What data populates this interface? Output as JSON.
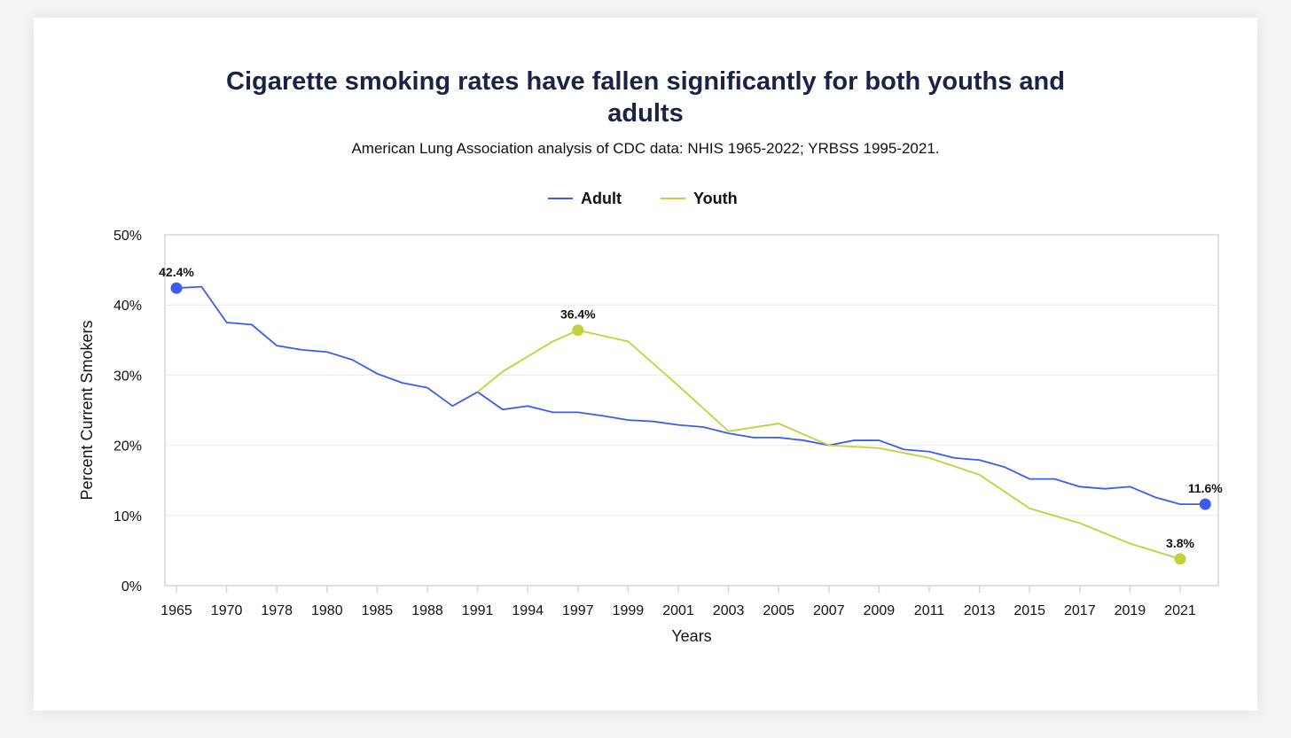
{
  "chart_data": {
    "type": "line",
    "title_line1": "Cigarette smoking rates have fallen significantly for both youths and",
    "title_line2": "adults",
    "subtitle": "American Lung Association analysis of CDC data: NHIS 1965-2022; YRBSS 1995-2021.",
    "xlabel": "Years",
    "ylabel": "Percent Current Smokers",
    "ylim": [
      0,
      50
    ],
    "yticks": [
      "0%",
      "10%",
      "20%",
      "30%",
      "40%",
      "50%"
    ],
    "legend_position": "top-center",
    "categories": [
      "1965",
      "1966",
      "1970",
      "1974",
      "1978",
      "1979",
      "1980",
      "1983",
      "1985",
      "1987",
      "1988",
      "1990",
      "1991",
      "1992",
      "1994",
      "1995",
      "1997",
      "1998",
      "1999",
      "2000",
      "2001",
      "2002",
      "2003",
      "2004",
      "2005",
      "2006",
      "2007",
      "2008",
      "2009",
      "2010",
      "2011",
      "2012",
      "2013",
      "2014",
      "2015",
      "2016",
      "2017",
      "2018",
      "2019",
      "2020",
      "2021",
      "2022"
    ],
    "x_tick_labels": [
      "1965",
      "1970",
      "1978",
      "1980",
      "1985",
      "1988",
      "1991",
      "1994",
      "1997",
      "1999",
      "2001",
      "2003",
      "2005",
      "2007",
      "2009",
      "2011",
      "2013",
      "2015",
      "2017",
      "2019",
      "2021"
    ],
    "series": [
      {
        "name": "Adult",
        "color": "#3a5cf5",
        "values": [
          42.4,
          42.6,
          37.5,
          37.2,
          34.2,
          33.6,
          33.3,
          32.2,
          30.2,
          28.9,
          28.2,
          25.6,
          27.6,
          25.1,
          25.6,
          24.7,
          24.7,
          24.2,
          23.6,
          23.4,
          22.9,
          22.6,
          21.7,
          21.1,
          21.1,
          20.7,
          20.0,
          20.7,
          20.7,
          19.4,
          19.1,
          18.2,
          17.9,
          16.9,
          15.2,
          15.2,
          14.1,
          13.8,
          14.1,
          12.6,
          11.6,
          11.6
        ],
        "labels": [
          {
            "index": 0,
            "text": "42.4%"
          },
          {
            "index": 41,
            "text": "11.6%"
          }
        ]
      },
      {
        "name": "Youth",
        "color": "#c2d13b",
        "values": [
          null,
          null,
          null,
          null,
          null,
          null,
          null,
          null,
          null,
          null,
          null,
          null,
          27.6,
          30.5,
          null,
          34.8,
          36.4,
          null,
          34.8,
          null,
          28.5,
          null,
          22.0,
          null,
          23.1,
          null,
          20.0,
          null,
          19.6,
          null,
          18.2,
          null,
          15.8,
          null,
          11.0,
          null,
          8.9,
          null,
          6.0,
          null,
          3.8,
          null
        ],
        "labels": [
          {
            "index": 16,
            "text": "36.4%"
          },
          {
            "index": 40,
            "text": "3.8%"
          }
        ]
      }
    ]
  }
}
